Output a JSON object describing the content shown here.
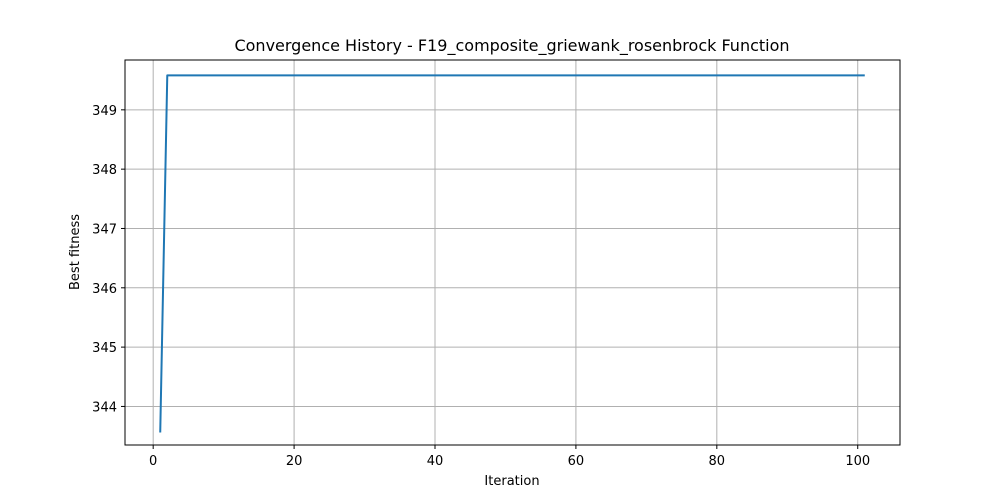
{
  "chart_data": {
    "type": "line",
    "title": "Convergence History - F19_composite_griewank_rosenbrock Function",
    "xlabel": "Iteration",
    "ylabel": "Best fitness",
    "xlim": [
      -4,
      106
    ],
    "ylim": [
      343.35,
      349.84
    ],
    "xticks": [
      0,
      20,
      40,
      60,
      80,
      100
    ],
    "yticks": [
      344,
      345,
      346,
      347,
      348,
      349
    ],
    "grid": true,
    "series": [
      {
        "color": "#1f77b4",
        "x": [
          1,
          2,
          3,
          101
        ],
        "y": [
          343.56,
          349.58,
          349.58,
          349.58
        ]
      }
    ]
  }
}
